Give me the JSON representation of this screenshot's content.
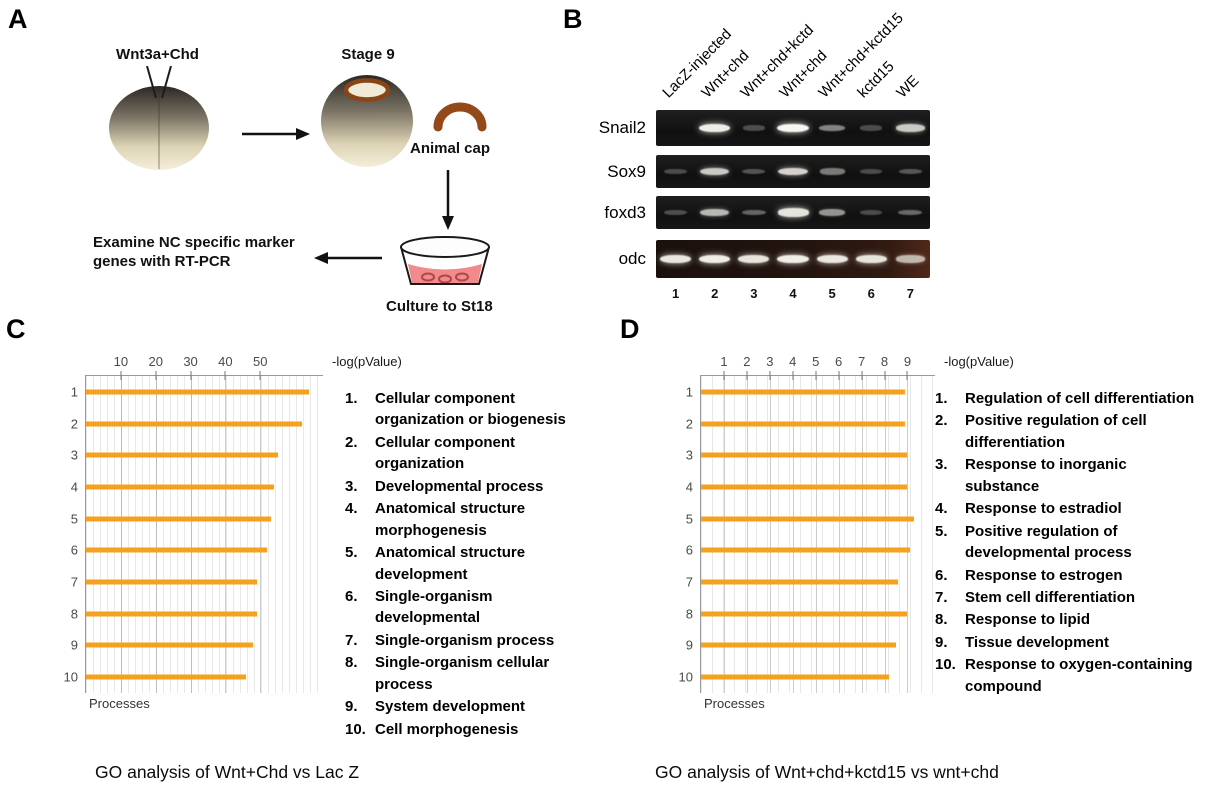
{
  "panels": {
    "a": {
      "label": "A",
      "injection_label": "Wnt3a+Chd",
      "stage_label": "Stage 9",
      "animal_cap_label": "Animal cap",
      "culture_label": "Culture to St18",
      "examine_text": "Examine NC specific marker genes with RT-PCR"
    },
    "b": {
      "label": "B",
      "lane_labels": [
        "LacZ-injected",
        "Wnt+chd",
        "Wnt+chd+kctd",
        "Wnt+chd",
        "Wnt+chd+kctd15",
        "kctd15",
        "WE"
      ],
      "lane_numbers": [
        "1",
        "2",
        "3",
        "4",
        "5",
        "6",
        "7"
      ],
      "gene_rows": [
        {
          "gene": "Snail2",
          "bands": [
            0,
            0.95,
            0.05,
            1.0,
            0.35,
            0.04,
            0.75
          ]
        },
        {
          "gene": "Sox9",
          "bands": [
            0.04,
            0.75,
            0.08,
            0.8,
            0.3,
            0.04,
            0.1
          ]
        },
        {
          "gene": "foxd3",
          "bands": [
            0.05,
            0.65,
            0.18,
            0.9,
            0.45,
            0.04,
            0.2
          ]
        },
        {
          "gene": "odc",
          "bands": [
            0.92,
            0.95,
            0.9,
            0.95,
            0.92,
            0.9,
            0.62
          ]
        }
      ]
    },
    "c": {
      "label": "C"
    },
    "d": {
      "label": "D"
    }
  },
  "chart_data": [
    {
      "id": "c",
      "type": "bar",
      "orientation": "horizontal",
      "title": "GO analysis of Wnt+Chd vs Lac Z",
      "axis_label": "-log(pValue)",
      "xlabel_bottom": "Processes",
      "bar_color": "#F5A01E",
      "categories": [
        "1",
        "2",
        "3",
        "4",
        "5",
        "6",
        "7",
        "8",
        "9",
        "10"
      ],
      "values": [
        64,
        62,
        55,
        54,
        53,
        52,
        49,
        49,
        48,
        46
      ],
      "ticks": [
        10,
        20,
        30,
        40,
        50
      ],
      "xlim": [
        0,
        68
      ],
      "grid": true,
      "legend_position": "right",
      "legend": [
        "Cellular component organization or biogenesis",
        "Cellular component organization",
        "Developmental process",
        "Anatomical structure morphogenesis",
        "Anatomical structure development",
        "Single-organism developmental",
        "Single-organism process",
        "Single-organism cellular process",
        "System development",
        "Cell morphogenesis"
      ]
    },
    {
      "id": "d",
      "type": "bar",
      "orientation": "horizontal",
      "title": "GO analysis of Wnt+chd+kctd15 vs wnt+chd",
      "axis_label": "-log(pValue)",
      "xlabel_bottom": "Processes",
      "bar_color": "#F5A01E",
      "categories": [
        "1",
        "2",
        "3",
        "4",
        "5",
        "6",
        "7",
        "8",
        "9",
        "10"
      ],
      "values": [
        8.9,
        8.9,
        9.0,
        9.0,
        9.3,
        9.1,
        8.6,
        9.0,
        8.5,
        8.2
      ],
      "ticks": [
        1,
        2,
        3,
        4,
        5,
        6,
        7,
        8,
        9
      ],
      "xlim": [
        0,
        10.2
      ],
      "grid": true,
      "legend_position": "right",
      "legend": [
        "Regulation of cell differentiation",
        "Positive regulation of cell differentiation",
        "Response to inorganic substance",
        "Response to estradiol",
        "Positive regulation of developmental process",
        "Response to estrogen",
        "Stem cell differentiation",
        "Response to lipid",
        "Tissue development",
        "Response to oxygen-containing compound"
      ]
    }
  ]
}
